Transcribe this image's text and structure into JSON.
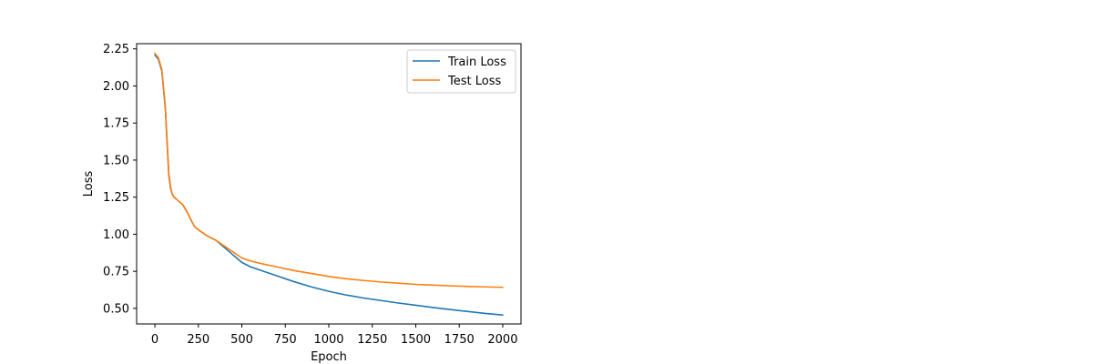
{
  "chart_data": {
    "type": "line",
    "title": "",
    "xlabel": "Epoch",
    "ylabel": "Loss",
    "xlim": [
      -105,
      2105
    ],
    "ylim": [
      0.395,
      2.285
    ],
    "xticks": [
      0,
      250,
      500,
      750,
      1000,
      1250,
      1500,
      1750,
      2000
    ],
    "yticks": [
      0.5,
      0.75,
      1.0,
      1.25,
      1.5,
      1.75,
      2.0,
      2.25
    ],
    "xtick_labels": [
      "0",
      "250",
      "500",
      "750",
      "1000",
      "1250",
      "1500",
      "1750",
      "2000"
    ],
    "ytick_labels": [
      "0.50",
      "0.75",
      "1.00",
      "1.25",
      "1.50",
      "1.75",
      "2.00",
      "2.25"
    ],
    "grid": false,
    "legend_position": "top-right",
    "series": [
      {
        "name": "Train Loss",
        "color": "#1f77b4",
        "x": [
          0,
          20,
          40,
          60,
          70,
          80,
          90,
          100,
          110,
          130,
          160,
          190,
          210,
          230,
          250,
          275,
          300,
          350,
          400,
          450,
          500,
          550,
          600,
          700,
          800,
          900,
          1000,
          1100,
          1200,
          1300,
          1400,
          1500,
          1600,
          1700,
          1800,
          1900,
          2000
        ],
        "y": [
          2.21,
          2.18,
          2.1,
          1.85,
          1.62,
          1.4,
          1.31,
          1.27,
          1.25,
          1.23,
          1.2,
          1.14,
          1.09,
          1.05,
          1.03,
          1.01,
          0.99,
          0.96,
          0.91,
          0.86,
          0.81,
          0.78,
          0.76,
          0.72,
          0.68,
          0.645,
          0.615,
          0.59,
          0.57,
          0.553,
          0.536,
          0.521,
          0.506,
          0.492,
          0.479,
          0.466,
          0.455
        ]
      },
      {
        "name": "Test Loss",
        "color": "#ff7f0e",
        "x": [
          0,
          20,
          40,
          60,
          70,
          80,
          90,
          100,
          110,
          130,
          160,
          190,
          210,
          230,
          250,
          275,
          300,
          350,
          400,
          450,
          500,
          550,
          600,
          700,
          800,
          900,
          1000,
          1100,
          1200,
          1300,
          1400,
          1500,
          1600,
          1700,
          1800,
          1900,
          2000
        ],
        "y": [
          2.22,
          2.19,
          2.11,
          1.86,
          1.63,
          1.41,
          1.32,
          1.27,
          1.25,
          1.23,
          1.2,
          1.14,
          1.09,
          1.05,
          1.03,
          1.01,
          0.99,
          0.96,
          0.92,
          0.88,
          0.84,
          0.82,
          0.805,
          0.78,
          0.755,
          0.735,
          0.715,
          0.7,
          0.688,
          0.678,
          0.67,
          0.662,
          0.657,
          0.652,
          0.648,
          0.645,
          0.642
        ]
      }
    ]
  }
}
